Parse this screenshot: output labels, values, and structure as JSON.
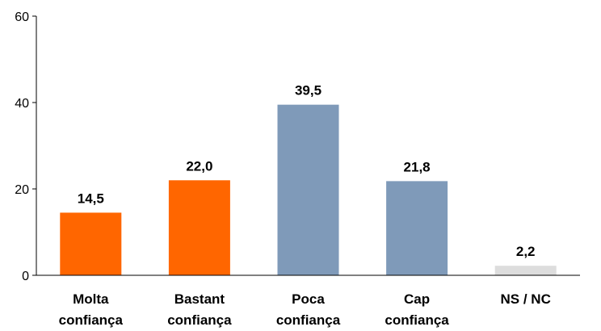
{
  "chart_data": {
    "type": "bar",
    "title": "",
    "xlabel": "",
    "ylabel": "",
    "ylim": [
      0,
      60
    ],
    "yticks": [
      "0",
      "20",
      "40",
      "60"
    ],
    "grid": false,
    "categories": [
      [
        "Molta",
        "confiança"
      ],
      [
        "Bastant",
        "confiança"
      ],
      [
        "Poca",
        "confiança"
      ],
      [
        "Cap",
        "confiança"
      ],
      [
        "NS / NC"
      ]
    ],
    "values": [
      14.5,
      22.0,
      39.5,
      21.8,
      2.2
    ],
    "value_labels": [
      "14,5",
      "22,0",
      "39,5",
      "21,8",
      "2,2"
    ],
    "colors": [
      "#ff6600",
      "#ff6600",
      "#7f9ab9",
      "#7f9ab9",
      "#dddddd"
    ]
  }
}
